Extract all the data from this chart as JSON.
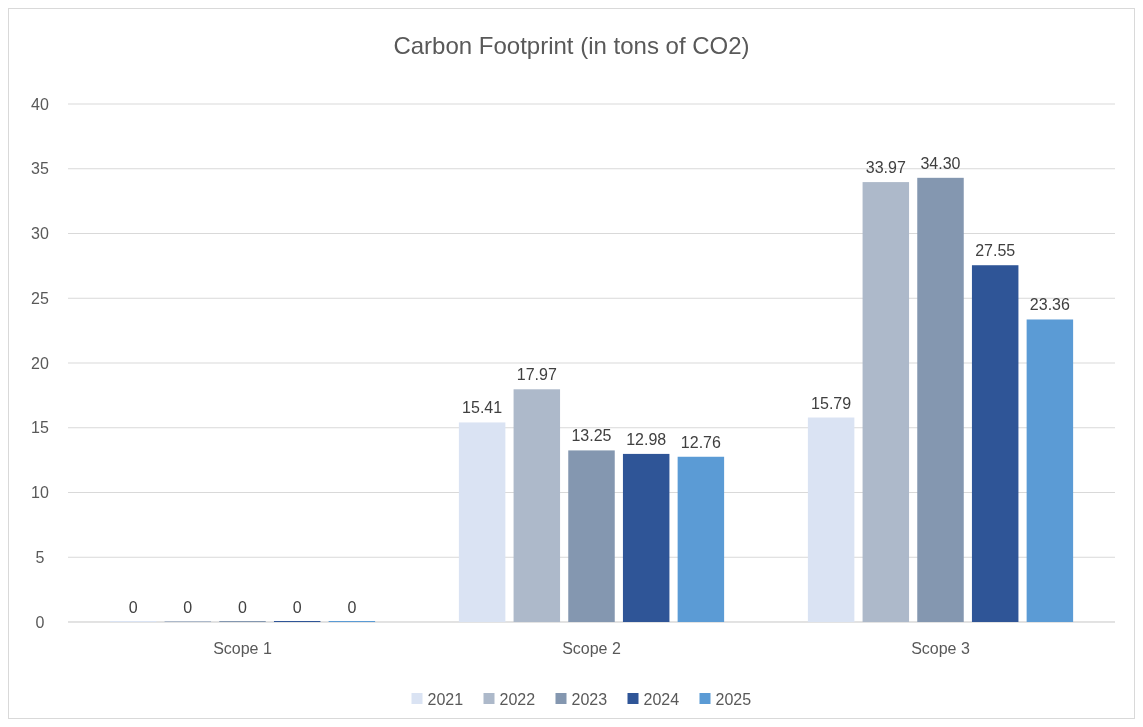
{
  "chart_data": {
    "type": "bar",
    "title": "Carbon Footprint (in tons of CO2)",
    "categories": [
      "Scope 1",
      "Scope 2",
      "Scope 3"
    ],
    "series": [
      {
        "name": "2021",
        "color": "#dae3f3",
        "values": [
          0,
          15.41,
          15.79
        ],
        "value_labels": [
          "0",
          "15.41",
          "15.79"
        ]
      },
      {
        "name": "2022",
        "color": "#adb9ca",
        "values": [
          0,
          17.97,
          33.97
        ],
        "value_labels": [
          "0",
          "17.97",
          "33.97"
        ]
      },
      {
        "name": "2023",
        "color": "#8497b0",
        "values": [
          0,
          13.25,
          34.3
        ],
        "value_labels": [
          "0",
          "13.25",
          "34.30"
        ]
      },
      {
        "name": "2024",
        "color": "#2f5597",
        "values": [
          0,
          12.98,
          27.55
        ],
        "value_labels": [
          "0",
          "12.98",
          "27.55"
        ]
      },
      {
        "name": "2025",
        "color": "#5b9bd5",
        "values": [
          0,
          12.76,
          23.36
        ],
        "value_labels": [
          "0",
          "12.76",
          "23.36"
        ]
      }
    ],
    "ylim": [
      0,
      40
    ],
    "yticks": [
      0,
      5,
      10,
      15,
      20,
      25,
      30,
      35,
      40
    ],
    "grid": "y",
    "legend": "bottom"
  }
}
